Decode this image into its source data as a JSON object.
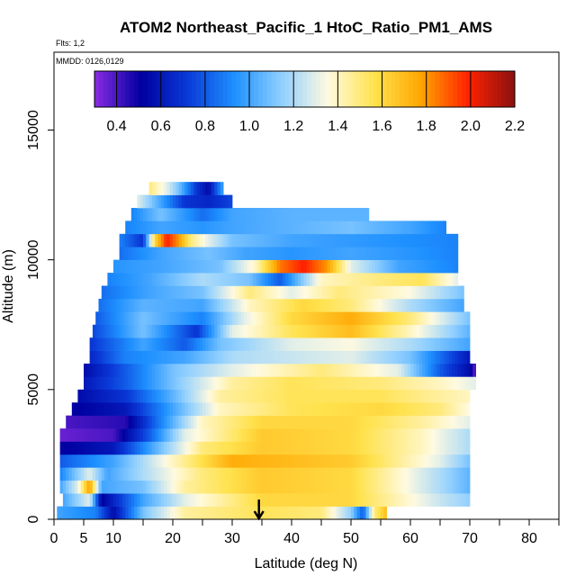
{
  "chart_data": {
    "type": "heatmap",
    "title": "ATOM2 Northeast_Pacific_1 HtoC_Ratio_PM1_AMS",
    "flights_label": "Flts: 1,2",
    "dates_label": "MMDD: 0126,0129",
    "xlabel": "Latitude (deg N)",
    "ylabel": "Altitude (m)",
    "xlim": [
      0,
      85
    ],
    "ylim": [
      0,
      18000
    ],
    "x_ticks": [
      0,
      5,
      10,
      20,
      30,
      40,
      50,
      60,
      70,
      80
    ],
    "y_ticks": [
      0,
      5000,
      10000,
      15000
    ],
    "arrow_marker_latitude": 34.5,
    "colorbar": {
      "min": 0.3,
      "max": 2.2,
      "tick_values": [
        0.4,
        0.6,
        0.8,
        1.0,
        1.2,
        1.4,
        1.6,
        1.8,
        2.0,
        2.2
      ],
      "tick_labels": [
        "0.4",
        "0.6",
        "0.8",
        "1.0",
        "1.2",
        "1.4",
        "1.6",
        "1.8",
        "2.0",
        "2.2"
      ],
      "colors": [
        "#8a2be2",
        "#0000a0",
        "#0a3ad8",
        "#1e90ff",
        "#8fcfff",
        "#fffae0",
        "#ffe24d",
        "#ffa500",
        "#ff2200",
        "#8b1010"
      ]
    },
    "layers": [
      {
        "alt": 250,
        "lat_start": 0.5,
        "lat_end": 56,
        "knots": [
          [
            0.5,
            1.0
          ],
          [
            7,
            0.9
          ],
          [
            10,
            0.55
          ],
          [
            15,
            1.1
          ],
          [
            22,
            1.45
          ],
          [
            35,
            1.55
          ],
          [
            45,
            1.5
          ],
          [
            50,
            1.15
          ],
          [
            52,
            0.8
          ],
          [
            54,
            1.5
          ],
          [
            56,
            1.7
          ]
        ]
      },
      {
        "alt": 750,
        "lat_start": 1.5,
        "lat_end": 70,
        "knots": [
          [
            1.5,
            1.0
          ],
          [
            6,
            1.3
          ],
          [
            8,
            0.5
          ],
          [
            15,
            1.0
          ],
          [
            22,
            1.3
          ],
          [
            35,
            1.6
          ],
          [
            50,
            1.6
          ],
          [
            65,
            1.25
          ],
          [
            70,
            1.15
          ]
        ]
      },
      {
        "alt": 1250,
        "lat_start": 1,
        "lat_end": 70,
        "knots": [
          [
            1,
            1.0
          ],
          [
            4,
            1.3
          ],
          [
            6,
            1.8
          ],
          [
            8,
            1.0
          ],
          [
            15,
            1.1
          ],
          [
            22,
            1.45
          ],
          [
            35,
            1.65
          ],
          [
            50,
            1.6
          ],
          [
            65,
            1.2
          ],
          [
            70,
            1.05
          ]
        ]
      },
      {
        "alt": 1750,
        "lat_start": 1,
        "lat_end": 70,
        "knots": [
          [
            1,
            0.9
          ],
          [
            6,
            1.3
          ],
          [
            9,
            1.0
          ],
          [
            15,
            1.2
          ],
          [
            25,
            1.5
          ],
          [
            35,
            1.65
          ],
          [
            50,
            1.6
          ],
          [
            65,
            1.2
          ],
          [
            70,
            1.05
          ]
        ]
      },
      {
        "alt": 2250,
        "lat_start": 1,
        "lat_end": 70,
        "knots": [
          [
            1,
            0.8
          ],
          [
            10,
            1.0
          ],
          [
            20,
            1.4
          ],
          [
            30,
            1.75
          ],
          [
            40,
            1.7
          ],
          [
            50,
            1.65
          ],
          [
            65,
            1.3
          ],
          [
            70,
            1.1
          ]
        ]
      },
      {
        "alt": 2750,
        "lat_start": 1,
        "lat_end": 70,
        "knots": [
          [
            1,
            0.5
          ],
          [
            10,
            0.6
          ],
          [
            18,
            1.1
          ],
          [
            25,
            1.5
          ],
          [
            35,
            1.65
          ],
          [
            50,
            1.6
          ],
          [
            62,
            1.4
          ],
          [
            70,
            1.2
          ]
        ]
      },
      {
        "alt": 3250,
        "lat_start": 1,
        "lat_end": 70,
        "knots": [
          [
            1,
            0.35
          ],
          [
            10,
            0.4
          ],
          [
            16,
            0.8
          ],
          [
            22,
            1.3
          ],
          [
            35,
            1.65
          ],
          [
            50,
            1.6
          ],
          [
            62,
            1.4
          ],
          [
            70,
            1.2
          ]
        ]
      },
      {
        "alt": 3750,
        "lat_start": 2,
        "lat_end": 70,
        "knots": [
          [
            2,
            0.4
          ],
          [
            12,
            0.45
          ],
          [
            18,
            0.9
          ],
          [
            25,
            1.4
          ],
          [
            35,
            1.6
          ],
          [
            50,
            1.6
          ],
          [
            62,
            1.45
          ],
          [
            70,
            1.3
          ]
        ]
      },
      {
        "alt": 4250,
        "lat_start": 3,
        "lat_end": 70,
        "knots": [
          [
            3,
            0.5
          ],
          [
            12,
            0.6
          ],
          [
            20,
            1.0
          ],
          [
            28,
            1.4
          ],
          [
            40,
            1.55
          ],
          [
            55,
            1.6
          ],
          [
            65,
            1.5
          ],
          [
            70,
            1.35
          ]
        ]
      },
      {
        "alt": 4750,
        "lat_start": 4,
        "lat_end": 70,
        "knots": [
          [
            4,
            0.55
          ],
          [
            12,
            0.7
          ],
          [
            20,
            1.05
          ],
          [
            28,
            1.45
          ],
          [
            40,
            1.55
          ],
          [
            55,
            1.55
          ],
          [
            70,
            1.4
          ]
        ]
      },
      {
        "alt": 5250,
        "lat_start": 5,
        "lat_end": 71,
        "knots": [
          [
            5,
            0.6
          ],
          [
            12,
            0.8
          ],
          [
            20,
            1.1
          ],
          [
            30,
            1.45
          ],
          [
            40,
            1.55
          ],
          [
            55,
            1.5
          ],
          [
            65,
            1.4
          ],
          [
            71,
            1.3
          ]
        ]
      },
      {
        "alt": 5750,
        "lat_start": 5,
        "lat_end": 71,
        "knots": [
          [
            5,
            0.55
          ],
          [
            12,
            0.8
          ],
          [
            20,
            1.1
          ],
          [
            30,
            1.3
          ],
          [
            45,
            1.5
          ],
          [
            58,
            1.3
          ],
          [
            65,
            0.8
          ],
          [
            70,
            0.55
          ],
          [
            71,
            0.35
          ]
        ]
      },
      {
        "alt": 6250,
        "lat_start": 6,
        "lat_end": 70,
        "knots": [
          [
            6,
            0.65
          ],
          [
            12,
            0.9
          ],
          [
            22,
            1.0
          ],
          [
            30,
            1.2
          ],
          [
            40,
            1.25
          ],
          [
            50,
            1.3
          ],
          [
            60,
            1.1
          ],
          [
            70,
            0.6
          ]
        ]
      },
      {
        "alt": 6750,
        "lat_start": 6,
        "lat_end": 70,
        "knots": [
          [
            6,
            0.7
          ],
          [
            15,
            1.0
          ],
          [
            22,
            0.8
          ],
          [
            28,
            1.1
          ],
          [
            40,
            1.3
          ],
          [
            50,
            1.35
          ],
          [
            60,
            1.2
          ],
          [
            70,
            1.0
          ]
        ]
      },
      {
        "alt": 7250,
        "lat_start": 6.5,
        "lat_end": 70,
        "knots": [
          [
            6.5,
            0.75
          ],
          [
            15,
            1.1
          ],
          [
            24,
            0.7
          ],
          [
            30,
            1.3
          ],
          [
            40,
            1.55
          ],
          [
            50,
            1.7
          ],
          [
            60,
            1.4
          ],
          [
            70,
            1.05
          ]
        ]
      },
      {
        "alt": 7750,
        "lat_start": 7,
        "lat_end": 70,
        "knots": [
          [
            7,
            0.8
          ],
          [
            15,
            1.1
          ],
          [
            25,
            0.9
          ],
          [
            32,
            1.3
          ],
          [
            40,
            1.6
          ],
          [
            50,
            1.75
          ],
          [
            60,
            1.5
          ],
          [
            70,
            1.1
          ]
        ]
      },
      {
        "alt": 8250,
        "lat_start": 7.5,
        "lat_end": 69,
        "knots": [
          [
            7.5,
            0.85
          ],
          [
            15,
            1.05
          ],
          [
            25,
            1.0
          ],
          [
            33,
            1.4
          ],
          [
            42,
            1.6
          ],
          [
            50,
            1.5
          ],
          [
            60,
            1.2
          ],
          [
            69,
            1.0
          ]
        ]
      },
      {
        "alt": 8750,
        "lat_start": 8,
        "lat_end": 69,
        "knots": [
          [
            8,
            0.85
          ],
          [
            16,
            1.0
          ],
          [
            25,
            1.1
          ],
          [
            33,
            1.5
          ],
          [
            40,
            1.3
          ],
          [
            48,
            1.5
          ],
          [
            60,
            1.35
          ],
          [
            69,
            1.1
          ]
        ]
      },
      {
        "alt": 9250,
        "lat_start": 9,
        "lat_end": 68,
        "knots": [
          [
            9,
            0.9
          ],
          [
            16,
            1.0
          ],
          [
            25,
            1.2
          ],
          [
            33,
            1.1
          ],
          [
            38,
            0.8
          ],
          [
            45,
            1.4
          ],
          [
            55,
            1.5
          ],
          [
            62,
            1.55
          ],
          [
            68,
            1.3
          ]
        ]
      },
      {
        "alt": 9750,
        "lat_start": 10,
        "lat_end": 68,
        "knots": [
          [
            10,
            0.95
          ],
          [
            18,
            1.0
          ],
          [
            28,
            1.1
          ],
          [
            34,
            1.4
          ],
          [
            38,
            1.85
          ],
          [
            42,
            2.0
          ],
          [
            46,
            1.8
          ],
          [
            50,
            1.3
          ],
          [
            58,
            1.0
          ],
          [
            68,
            0.9
          ]
        ]
      },
      {
        "alt": 10250,
        "lat_start": 11,
        "lat_end": 68,
        "knots": [
          [
            11,
            0.85
          ],
          [
            18,
            1.0
          ],
          [
            26,
            1.1
          ],
          [
            32,
            1.0
          ],
          [
            40,
            0.95
          ],
          [
            50,
            1.0
          ],
          [
            60,
            0.95
          ],
          [
            68,
            0.9
          ]
        ]
      },
      {
        "alt": 10750,
        "lat_start": 11,
        "lat_end": 68,
        "knots": [
          [
            11,
            0.9
          ],
          [
            15,
            0.7
          ],
          [
            17,
            1.6
          ],
          [
            19,
            2.0
          ],
          [
            21,
            1.8
          ],
          [
            23,
            1.5
          ],
          [
            26,
            1.3
          ],
          [
            30,
            1.1
          ],
          [
            40,
            1.0
          ],
          [
            55,
            0.95
          ],
          [
            68,
            0.9
          ]
        ]
      },
      {
        "alt": 11250,
        "lat_start": 12,
        "lat_end": 66,
        "knots": [
          [
            12,
            0.9
          ],
          [
            18,
            1.0
          ],
          [
            25,
            0.95
          ],
          [
            30,
            1.0
          ],
          [
            40,
            1.05
          ],
          [
            50,
            1.1
          ],
          [
            60,
            1.0
          ],
          [
            66,
            0.9
          ]
        ]
      },
      {
        "alt": 11750,
        "lat_start": 13,
        "lat_end": 53,
        "knots": [
          [
            13,
            0.9
          ],
          [
            18,
            1.1
          ],
          [
            25,
            0.85
          ],
          [
            30,
            1.0
          ],
          [
            40,
            1.05
          ],
          [
            53,
            1.05
          ]
        ]
      },
      {
        "alt": 12250,
        "lat_start": 14,
        "lat_end": 30,
        "knots": [
          [
            14,
            1.3
          ],
          [
            18,
            1.0
          ],
          [
            22,
            0.7
          ],
          [
            26,
            0.65
          ],
          [
            30,
            0.75
          ]
        ]
      },
      {
        "alt": 12750,
        "lat_start": 16,
        "lat_end": 28.5,
        "knots": [
          [
            16,
            1.5
          ],
          [
            19,
            1.3
          ],
          [
            21,
            1.1
          ],
          [
            24,
            0.7
          ],
          [
            26,
            0.55
          ],
          [
            28.5,
            1.0
          ]
        ]
      }
    ]
  }
}
